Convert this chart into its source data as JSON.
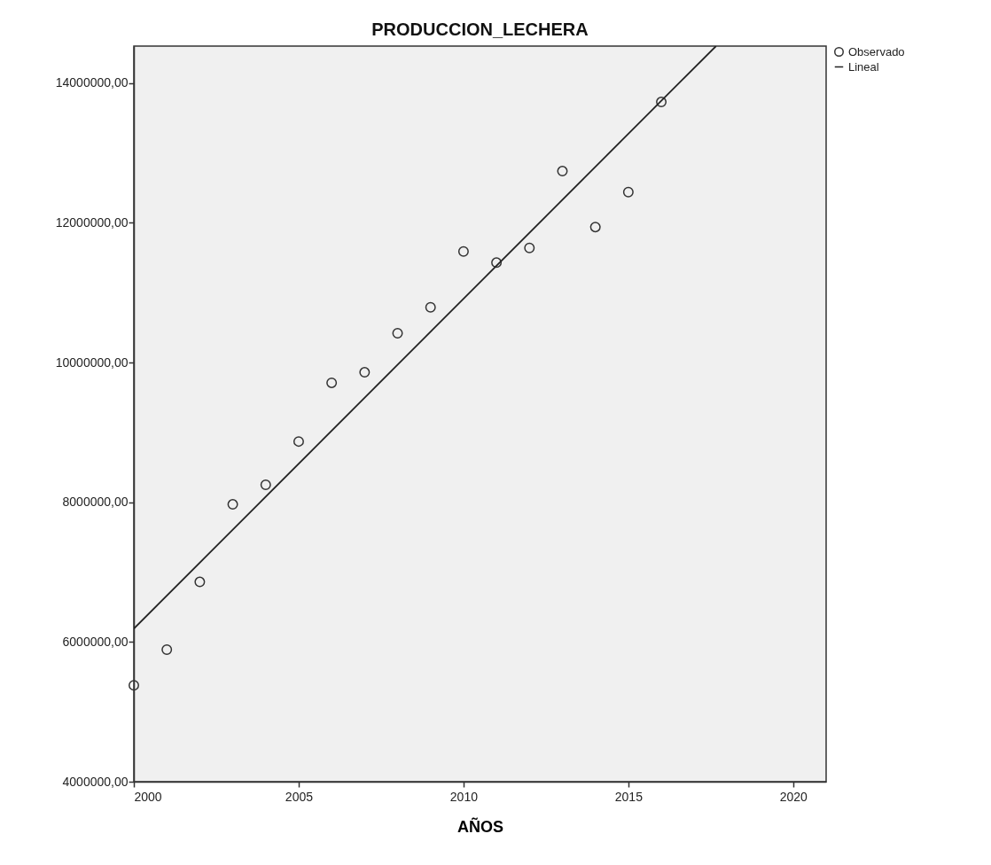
{
  "chart_data": {
    "type": "scatter",
    "title": "PRODUCCION_LECHERA",
    "xlabel": "AÑOS",
    "xlim": [
      2000,
      2021
    ],
    "xticks": [
      2000,
      2005,
      2010,
      2015,
      2020
    ],
    "ylim": [
      4000000,
      14530000
    ],
    "yticks": [
      {
        "value": 4000000,
        "label": "4000000,00"
      },
      {
        "value": 6000000,
        "label": "6000000,00"
      },
      {
        "value": 8000000,
        "label": "8000000,00"
      },
      {
        "value": 10000000,
        "label": "10000000,00"
      },
      {
        "value": 12000000,
        "label": "12000000,00"
      },
      {
        "value": 14000000,
        "label": "14000000,00"
      }
    ],
    "grid": false,
    "legend": "top right",
    "series": [
      {
        "name": "Observado",
        "marker": "circle",
        "color": "#333333",
        "x": [
          2000,
          2001,
          2002,
          2003,
          2004,
          2005,
          2006,
          2007,
          2008,
          2009,
          2010,
          2011,
          2012,
          2013,
          2014,
          2015,
          2016
        ],
        "values": [
          5380000,
          5890000,
          6860000,
          7970000,
          8250000,
          8870000,
          9710000,
          9860000,
          10420000,
          10790000,
          11590000,
          11430000,
          11640000,
          12740000,
          11940000,
          12440000,
          13730000
        ]
      },
      {
        "name": "Lineal",
        "type": "line",
        "color": "#222222",
        "line_style": "solid",
        "x": [
          2000,
          2017.66
        ],
        "values": [
          6190000,
          14530000
        ]
      }
    ]
  }
}
